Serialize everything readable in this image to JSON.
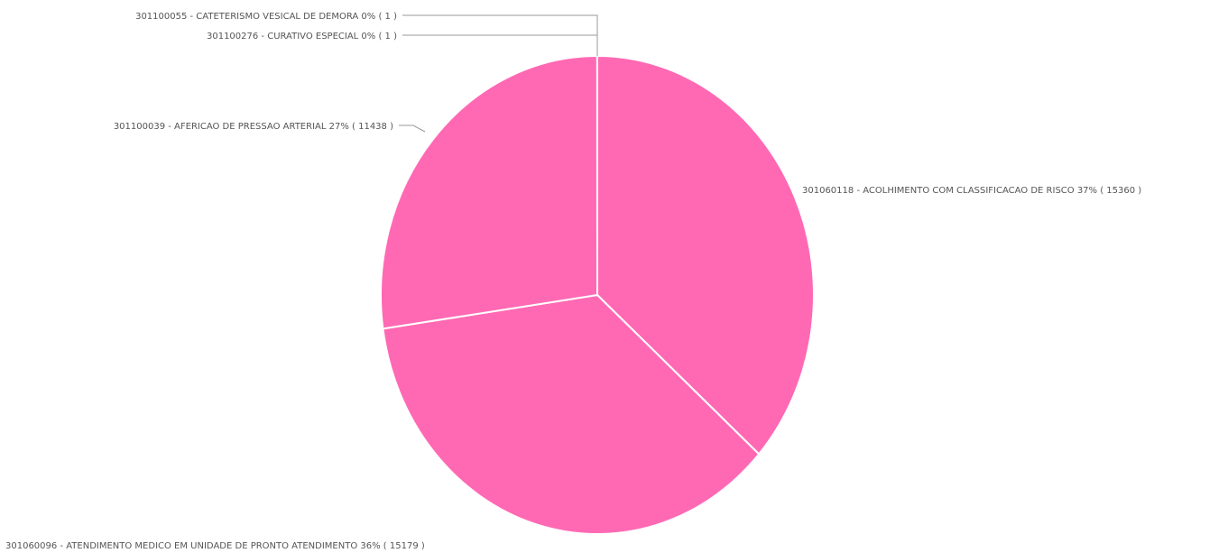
{
  "chart_data": {
    "type": "pie",
    "color": "#FF69B4",
    "slices": [
      {
        "code": "301060118",
        "label": "301060118 - ACOLHIMENTO COM CLASSIFICACAO DE RISCO 37% ( 15360 )",
        "value": 15360,
        "percent": "37%"
      },
      {
        "code": "301060096",
        "label": "301060096 - ATENDIMENTO MEDICO EM UNIDADE DE PRONTO ATENDIMENTO 36% ( 15179 )",
        "value": 15179,
        "percent": "36%"
      },
      {
        "code": "301100039",
        "label": "301100039 - AFERICAO DE PRESSAO ARTERIAL 27% ( 11438 )",
        "value": 11438,
        "percent": "27%"
      },
      {
        "code": "301100055",
        "label": "301100055 - CATETERISMO VESICAL DE DEMORA 0% ( 1 )",
        "value": 1,
        "percent": "0%"
      },
      {
        "code": "301100276",
        "label": "301100276 - CURATIVO ESPECIAL 0% ( 1 )",
        "value": 1,
        "percent": "0%"
      }
    ]
  }
}
